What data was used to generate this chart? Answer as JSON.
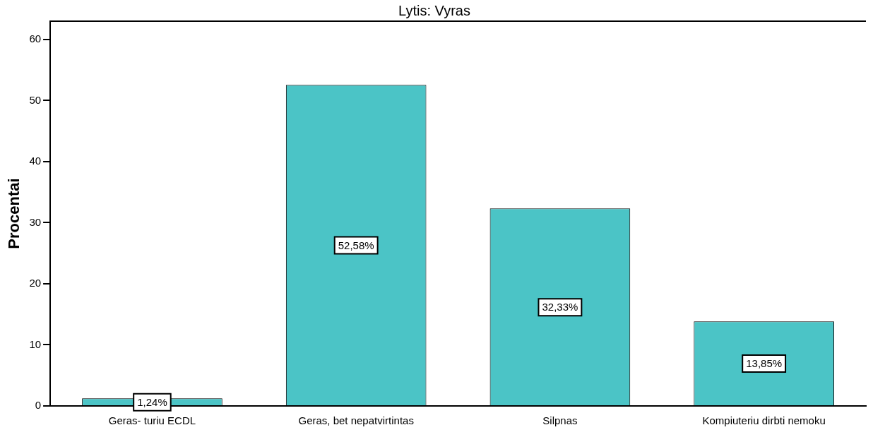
{
  "chart_data": {
    "type": "bar",
    "title": "Lytis: Vyras",
    "ylabel": "Procentai",
    "categories": [
      "Geras- turiu ECDL",
      "Geras, bet nepatvirtintas",
      "Silpnas",
      "Kompiuteriu dirbti nemoku"
    ],
    "values": [
      1.24,
      52.58,
      32.33,
      13.85
    ],
    "value_labels": [
      "1,24%",
      "52,58%",
      "32,33%",
      "13,85%"
    ],
    "color": "#4bc4c6",
    "ylim": [
      0,
      63
    ],
    "yticks": [
      0,
      10,
      20,
      30,
      40,
      50,
      60
    ],
    "grid": false,
    "legend": false
  }
}
